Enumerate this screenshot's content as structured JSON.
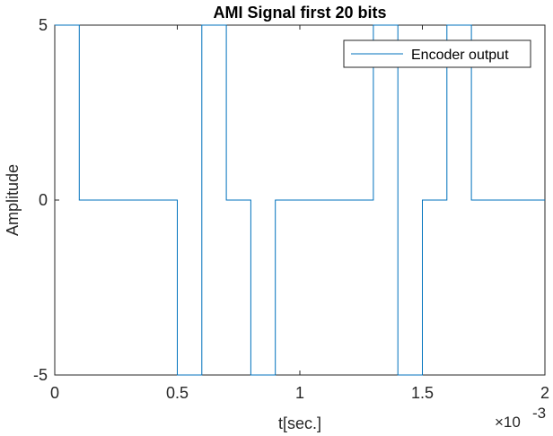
{
  "chart_data": {
    "type": "line",
    "title": "AMI Signal first 20 bits",
    "xlabel": "t[sec.]",
    "ylabel": "Amplitude",
    "x_exponent_label": "×10",
    "x_exponent_power": "-3",
    "xlim": [
      0,
      2
    ],
    "ylim": [
      -5,
      5
    ],
    "xticks": [
      0,
      0.5,
      1,
      1.5,
      2
    ],
    "xtick_labels": [
      "0",
      "0.5",
      "1",
      "1.5",
      "2"
    ],
    "yticks": [
      -5,
      0,
      5
    ],
    "ytick_labels": [
      "-5",
      "0",
      "5"
    ],
    "x_unit_scale": "1e-3",
    "grid": false,
    "legend_position": "top-right",
    "series": [
      {
        "name": "Encoder output",
        "color": "#0072BD",
        "step": true,
        "bit_duration": 0.1,
        "levels": [
          5,
          0,
          0,
          0,
          0,
          -5,
          5,
          0,
          -5,
          0,
          0,
          0,
          0,
          5,
          -5,
          0,
          5,
          0,
          0,
          0
        ]
      }
    ]
  }
}
